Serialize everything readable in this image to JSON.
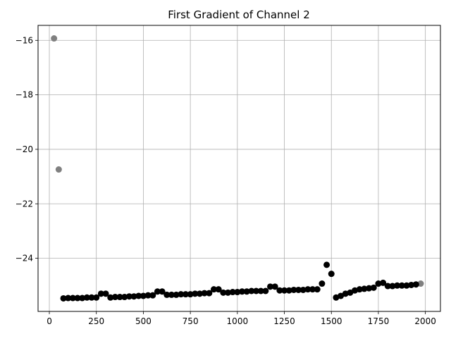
{
  "chart_data": {
    "type": "scatter",
    "title": "First Gradient of Channel 2",
    "xlabel": "",
    "ylabel": "",
    "xlim": [
      -60,
      2080
    ],
    "ylim": [
      -25.95,
      -15.45
    ],
    "grid": true,
    "xticks": [
      0,
      250,
      500,
      750,
      1000,
      1250,
      1500,
      1750,
      2000
    ],
    "yticks": [
      -16,
      -18,
      -20,
      -22,
      -24
    ],
    "xtick_labels": [
      "0",
      "250",
      "500",
      "750",
      "1000",
      "1250",
      "1500",
      "1750",
      "2000"
    ],
    "ytick_labels": [
      "−16",
      "−18",
      "−20",
      "−22",
      "−24"
    ],
    "colors": {
      "main": "#000000",
      "edge": "#808080",
      "grid": "#b0b0b0"
    },
    "series": [
      {
        "color": "#808080",
        "x": [
          25,
          50,
          1975
        ],
        "y": [
          -15.93,
          -20.74,
          -24.93
        ]
      },
      {
        "color": "#000000",
        "x": [
          75,
          100,
          125,
          150,
          175,
          200,
          225,
          250,
          275,
          300,
          325,
          350,
          375,
          400,
          425,
          450,
          475,
          500,
          525,
          550,
          575,
          600,
          625,
          650,
          675,
          700,
          725,
          750,
          775,
          800,
          825,
          850,
          875,
          900,
          925,
          950,
          975,
          1000,
          1025,
          1050,
          1075,
          1100,
          1125,
          1150,
          1175,
          1200,
          1225,
          1250,
          1275,
          1300,
          1325,
          1350,
          1375,
          1400,
          1425,
          1450,
          1475,
          1500,
          1525,
          1550,
          1575,
          1600,
          1625,
          1650,
          1675,
          1700,
          1725,
          1750,
          1775,
          1800,
          1825,
          1850,
          1875,
          1900,
          1925,
          1950
        ],
        "y": [
          -25.47,
          -25.46,
          -25.46,
          -25.46,
          -25.46,
          -25.44,
          -25.44,
          -25.44,
          -25.3,
          -25.3,
          -25.44,
          -25.42,
          -25.42,
          -25.42,
          -25.4,
          -25.4,
          -25.38,
          -25.38,
          -25.36,
          -25.36,
          -25.22,
          -25.22,
          -25.34,
          -25.34,
          -25.34,
          -25.32,
          -25.32,
          -25.32,
          -25.3,
          -25.3,
          -25.28,
          -25.28,
          -25.14,
          -25.14,
          -25.26,
          -25.26,
          -25.24,
          -25.24,
          -25.22,
          -25.22,
          -25.2,
          -25.2,
          -25.2,
          -25.2,
          -25.04,
          -25.04,
          -25.18,
          -25.18,
          -25.18,
          -25.16,
          -25.16,
          -25.16,
          -25.14,
          -25.14,
          -25.14,
          -24.93,
          -24.24,
          -24.57,
          -25.44,
          -25.38,
          -25.3,
          -25.26,
          -25.18,
          -25.14,
          -25.12,
          -25.1,
          -25.08,
          -24.93,
          -24.9,
          -25.02,
          -25.02,
          -25.0,
          -25.0,
          -25.0,
          -24.98,
          -24.96
        ]
      }
    ]
  }
}
